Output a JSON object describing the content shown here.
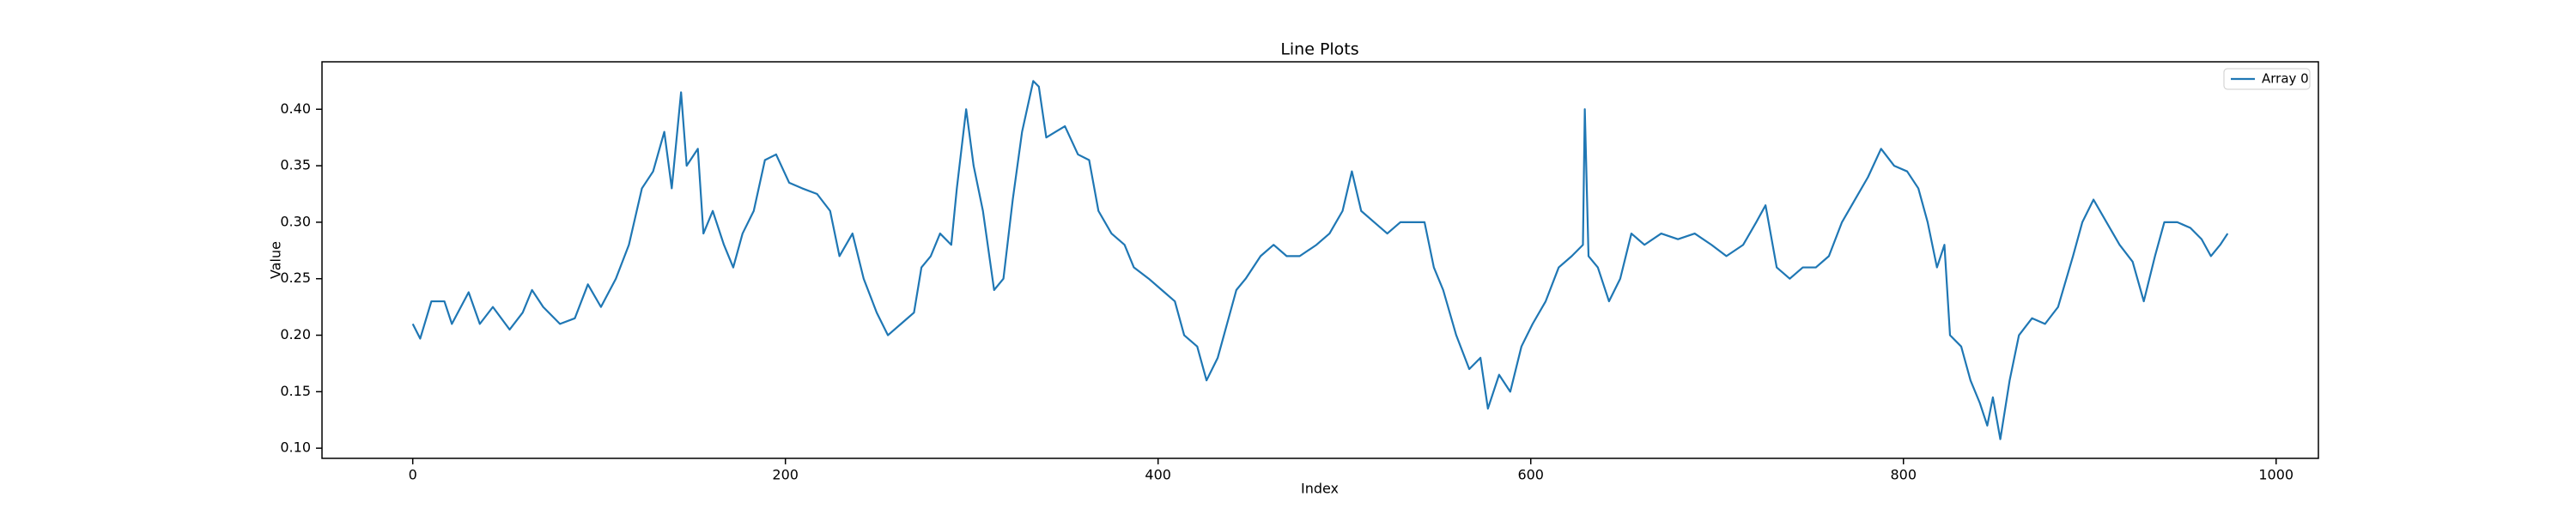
{
  "chart_data": {
    "type": "line",
    "title": "Line Plots",
    "x_label": "Index",
    "y_label": "Value",
    "x": [
      0,
      4,
      10,
      17,
      21,
      30,
      36,
      43,
      52,
      59,
      64,
      70,
      79,
      87,
      94,
      101,
      109,
      116,
      123,
      129,
      135,
      139,
      144,
      147,
      153,
      156,
      161,
      167,
      172,
      177,
      183,
      189,
      195,
      202,
      209,
      217,
      224,
      229,
      236,
      242,
      249,
      255,
      262,
      269,
      273,
      278,
      283,
      289,
      292,
      297,
      301,
      306,
      312,
      317,
      322,
      327,
      333,
      336,
      340,
      345,
      350,
      357,
      363,
      368,
      375,
      382,
      387,
      395,
      402,
      409,
      414,
      421,
      426,
      432,
      437,
      442,
      447,
      455,
      462,
      469,
      476,
      485,
      492,
      499,
      504,
      509,
      516,
      523,
      530,
      538,
      543,
      548,
      553,
      560,
      567,
      573,
      577,
      583,
      589,
      595,
      601,
      608,
      615,
      622,
      628,
      629,
      631,
      636,
      642,
      648,
      654,
      661,
      670,
      679,
      688,
      697,
      705,
      714,
      721,
      726,
      732,
      739,
      746,
      753,
      760,
      767,
      774,
      781,
      788,
      795,
      802,
      808,
      813,
      818,
      822,
      825,
      831,
      836,
      841,
      845,
      848,
      852,
      857,
      862,
      869,
      876,
      883,
      891,
      896,
      902,
      909,
      916,
      923,
      929,
      935,
      940,
      947,
      954,
      960,
      965,
      970,
      974
    ],
    "series": [
      {
        "name": "Array 0",
        "color": "#1f77b4",
        "values": [
          0.21,
          0.197,
          0.23,
          0.23,
          0.21,
          0.238,
          0.21,
          0.225,
          0.205,
          0.22,
          0.24,
          0.225,
          0.21,
          0.215,
          0.245,
          0.225,
          0.25,
          0.28,
          0.33,
          0.345,
          0.38,
          0.33,
          0.415,
          0.35,
          0.365,
          0.29,
          0.31,
          0.28,
          0.26,
          0.29,
          0.31,
          0.355,
          0.36,
          0.335,
          0.33,
          0.325,
          0.31,
          0.27,
          0.29,
          0.25,
          0.22,
          0.2,
          0.21,
          0.22,
          0.26,
          0.27,
          0.29,
          0.28,
          0.33,
          0.4,
          0.35,
          0.31,
          0.24,
          0.25,
          0.32,
          0.38,
          0.425,
          0.42,
          0.375,
          0.38,
          0.385,
          0.36,
          0.355,
          0.31,
          0.29,
          0.28,
          0.26,
          0.25,
          0.24,
          0.23,
          0.2,
          0.19,
          0.16,
          0.18,
          0.21,
          0.24,
          0.25,
          0.27,
          0.28,
          0.27,
          0.27,
          0.28,
          0.29,
          0.31,
          0.345,
          0.31,
          0.3,
          0.29,
          0.3,
          0.3,
          0.3,
          0.26,
          0.24,
          0.2,
          0.17,
          0.18,
          0.135,
          0.165,
          0.15,
          0.19,
          0.21,
          0.23,
          0.26,
          0.27,
          0.28,
          0.4,
          0.27,
          0.26,
          0.23,
          0.25,
          0.29,
          0.28,
          0.29,
          0.285,
          0.29,
          0.28,
          0.27,
          0.28,
          0.3,
          0.315,
          0.26,
          0.25,
          0.26,
          0.26,
          0.27,
          0.3,
          0.32,
          0.34,
          0.365,
          0.35,
          0.345,
          0.33,
          0.3,
          0.26,
          0.28,
          0.2,
          0.19,
          0.16,
          0.14,
          0.12,
          0.145,
          0.108,
          0.16,
          0.2,
          0.215,
          0.21,
          0.225,
          0.27,
          0.3,
          0.32,
          0.3,
          0.28,
          0.265,
          0.23,
          0.27,
          0.3,
          0.3,
          0.295,
          0.285,
          0.27,
          0.28,
          0.29
        ]
      }
    ],
    "xlim": [
      -48.7,
      1022.7
    ],
    "xticks": [
      0,
      200,
      400,
      600,
      800,
      1000
    ],
    "ylim": [
      0.091,
      0.442
    ],
    "yticks": [
      {
        "value": 0.1,
        "label": "0.10"
      },
      {
        "value": 0.15,
        "label": "0.15"
      },
      {
        "value": 0.2,
        "label": "0.20"
      },
      {
        "value": 0.25,
        "label": "0.25"
      },
      {
        "value": 0.3,
        "label": "0.30"
      },
      {
        "value": 0.35,
        "label": "0.35"
      },
      {
        "value": 0.4,
        "label": "0.40"
      }
    ],
    "grid": false,
    "legend": "upper right"
  }
}
